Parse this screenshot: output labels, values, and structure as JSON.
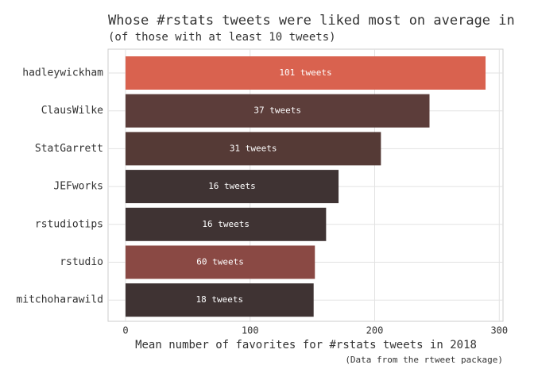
{
  "chart_data": {
    "type": "hbar",
    "title": "Whose #rstats tweets were liked most on average in",
    "subtitle": "(of those with at least 10 tweets)",
    "x_label": "Mean number of favorites for #rstats tweets in 2018",
    "caption": "(Data from the rtweet package)",
    "categories": [
      "hadleywickham",
      "ClausWilke",
      "StatGarrett",
      "JEFworks",
      "rstudiotips",
      "rstudio",
      "mitchoharawild"
    ],
    "values": [
      289,
      244,
      205,
      171,
      161,
      152,
      151
    ],
    "bar_labels": [
      "101 tweets",
      "37 tweets",
      "31 tweets",
      "16 tweets",
      "16 tweets",
      "60 tweets",
      "18 tweets"
    ],
    "colors": [
      "#d9624f",
      "#5c3d3a",
      "#553a36",
      "#3f3333",
      "#3f3333",
      "#8a4944",
      "#3f3333"
    ],
    "xlim": [
      -14,
      303
    ],
    "xticks": [
      0,
      100,
      200,
      300
    ],
    "grid": true
  }
}
